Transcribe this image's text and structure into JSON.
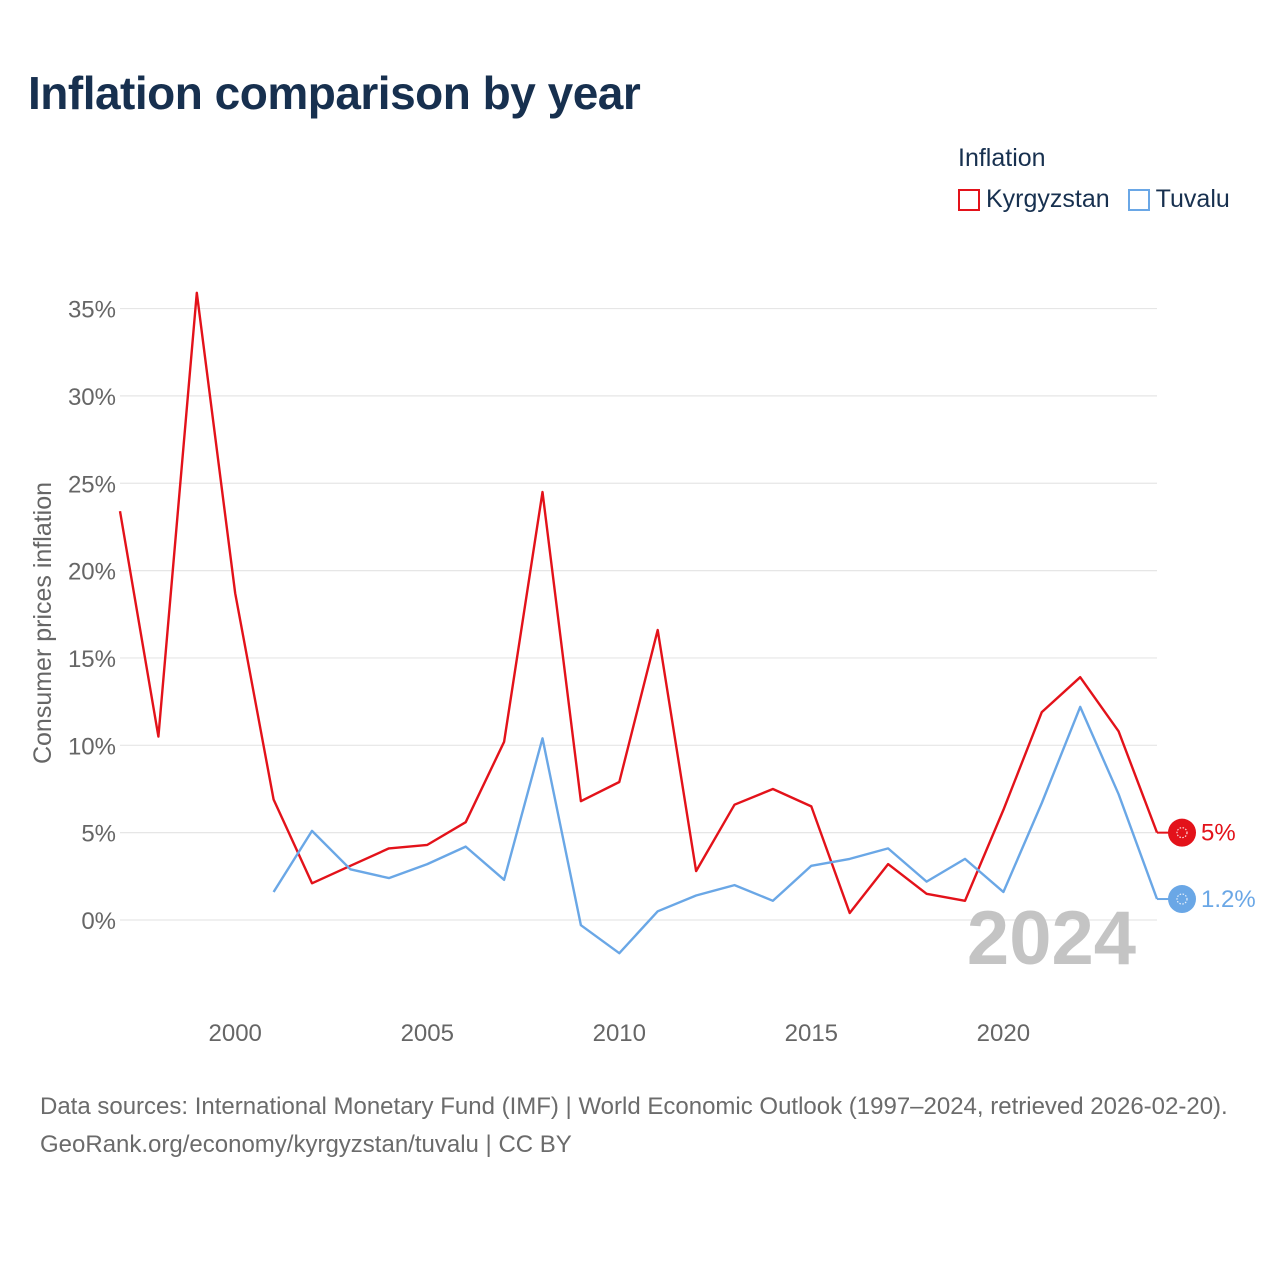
{
  "title": "Inflation comparison by year",
  "legend": {
    "title": "Inflation",
    "items": [
      {
        "label": "Kyrgyzstan",
        "color": "#e3121a"
      },
      {
        "label": "Tuvalu",
        "color": "#6aa7e6"
      }
    ]
  },
  "year_watermark": "2024",
  "source": {
    "line1": "Data sources: International Monetary Fund (IMF) | World Economic Outlook (1997–2024, retrieved 2026-02-20).",
    "line2": "GeoRank.org/economy/kyrgyzstan/tuvalu | CC BY"
  },
  "chart_data": {
    "type": "line",
    "title": "Inflation comparison by year",
    "xlabel": "",
    "ylabel": "Consumer prices inflation",
    "xlim": [
      1997,
      2024
    ],
    "ylim": [
      -5,
      37
    ],
    "yticks": [
      0,
      5,
      10,
      15,
      20,
      25,
      30,
      35
    ],
    "ytick_labels": [
      "0%",
      "5%",
      "10%",
      "15%",
      "20%",
      "25%",
      "30%",
      "35%"
    ],
    "xticks": [
      2000,
      2005,
      2010,
      2015,
      2020
    ],
    "xtick_labels": [
      "2000",
      "2005",
      "2010",
      "2015",
      "2020"
    ],
    "grid": true,
    "legend_position": "top-right",
    "series": [
      {
        "name": "Kyrgyzstan",
        "color": "#e3121a",
        "end_label": "5%",
        "points": [
          [
            1997,
            23.4
          ],
          [
            1998,
            10.5
          ],
          [
            1999,
            35.9
          ],
          [
            2000,
            18.7
          ],
          [
            2001,
            6.9
          ],
          [
            2002,
            2.1
          ],
          [
            2003,
            3.1
          ],
          [
            2004,
            4.1
          ],
          [
            2005,
            4.3
          ],
          [
            2006,
            5.6
          ],
          [
            2007,
            10.2
          ],
          [
            2008,
            24.5
          ],
          [
            2009,
            6.8
          ],
          [
            2010,
            7.9
          ],
          [
            2011,
            16.6
          ],
          [
            2012,
            2.8
          ],
          [
            2013,
            6.6
          ],
          [
            2014,
            7.5
          ],
          [
            2015,
            6.5
          ],
          [
            2016,
            0.4
          ],
          [
            2017,
            3.2
          ],
          [
            2018,
            1.5
          ],
          [
            2019,
            1.1
          ],
          [
            2020,
            6.3
          ],
          [
            2021,
            11.9
          ],
          [
            2022,
            13.9
          ],
          [
            2023,
            10.8
          ],
          [
            2024,
            5.0
          ]
        ]
      },
      {
        "name": "Tuvalu",
        "color": "#6aa7e6",
        "end_label": "1.2%",
        "points": [
          [
            2001,
            1.6
          ],
          [
            2002,
            5.1
          ],
          [
            2003,
            2.9
          ],
          [
            2004,
            2.4
          ],
          [
            2005,
            3.2
          ],
          [
            2006,
            4.2
          ],
          [
            2007,
            2.3
          ],
          [
            2008,
            10.4
          ],
          [
            2009,
            -0.3
          ],
          [
            2010,
            -1.9
          ],
          [
            2011,
            0.5
          ],
          [
            2012,
            1.4
          ],
          [
            2013,
            2.0
          ],
          [
            2014,
            1.1
          ],
          [
            2015,
            3.1
          ],
          [
            2016,
            3.5
          ],
          [
            2017,
            4.1
          ],
          [
            2018,
            2.2
          ],
          [
            2019,
            3.5
          ],
          [
            2020,
            1.6
          ],
          [
            2021,
            6.7
          ],
          [
            2022,
            12.2
          ],
          [
            2023,
            7.2
          ],
          [
            2024,
            1.2
          ]
        ]
      }
    ]
  }
}
